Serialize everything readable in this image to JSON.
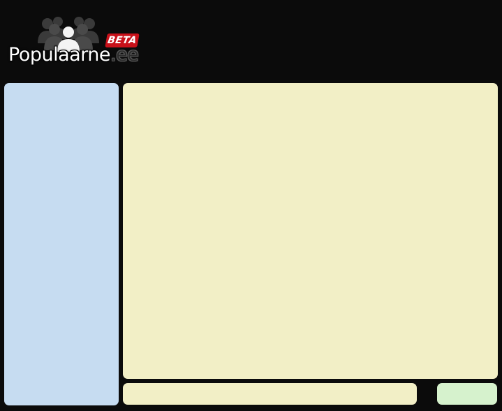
{
  "header": {
    "logo": {
      "brand_name": "Populaarne",
      "brand_tld": ".ee",
      "badge": "BETA"
    }
  },
  "colors": {
    "background": "#0b0b0b",
    "sidebar_panel": "#c6dcf1",
    "main_panel": "#f2efc6",
    "footer_panel": "#f2efc6",
    "side_footer_panel": "#d6f2cd",
    "beta_badge": "#c8111a"
  },
  "icons": {
    "logo_crowd": "people-crowd-icon"
  }
}
